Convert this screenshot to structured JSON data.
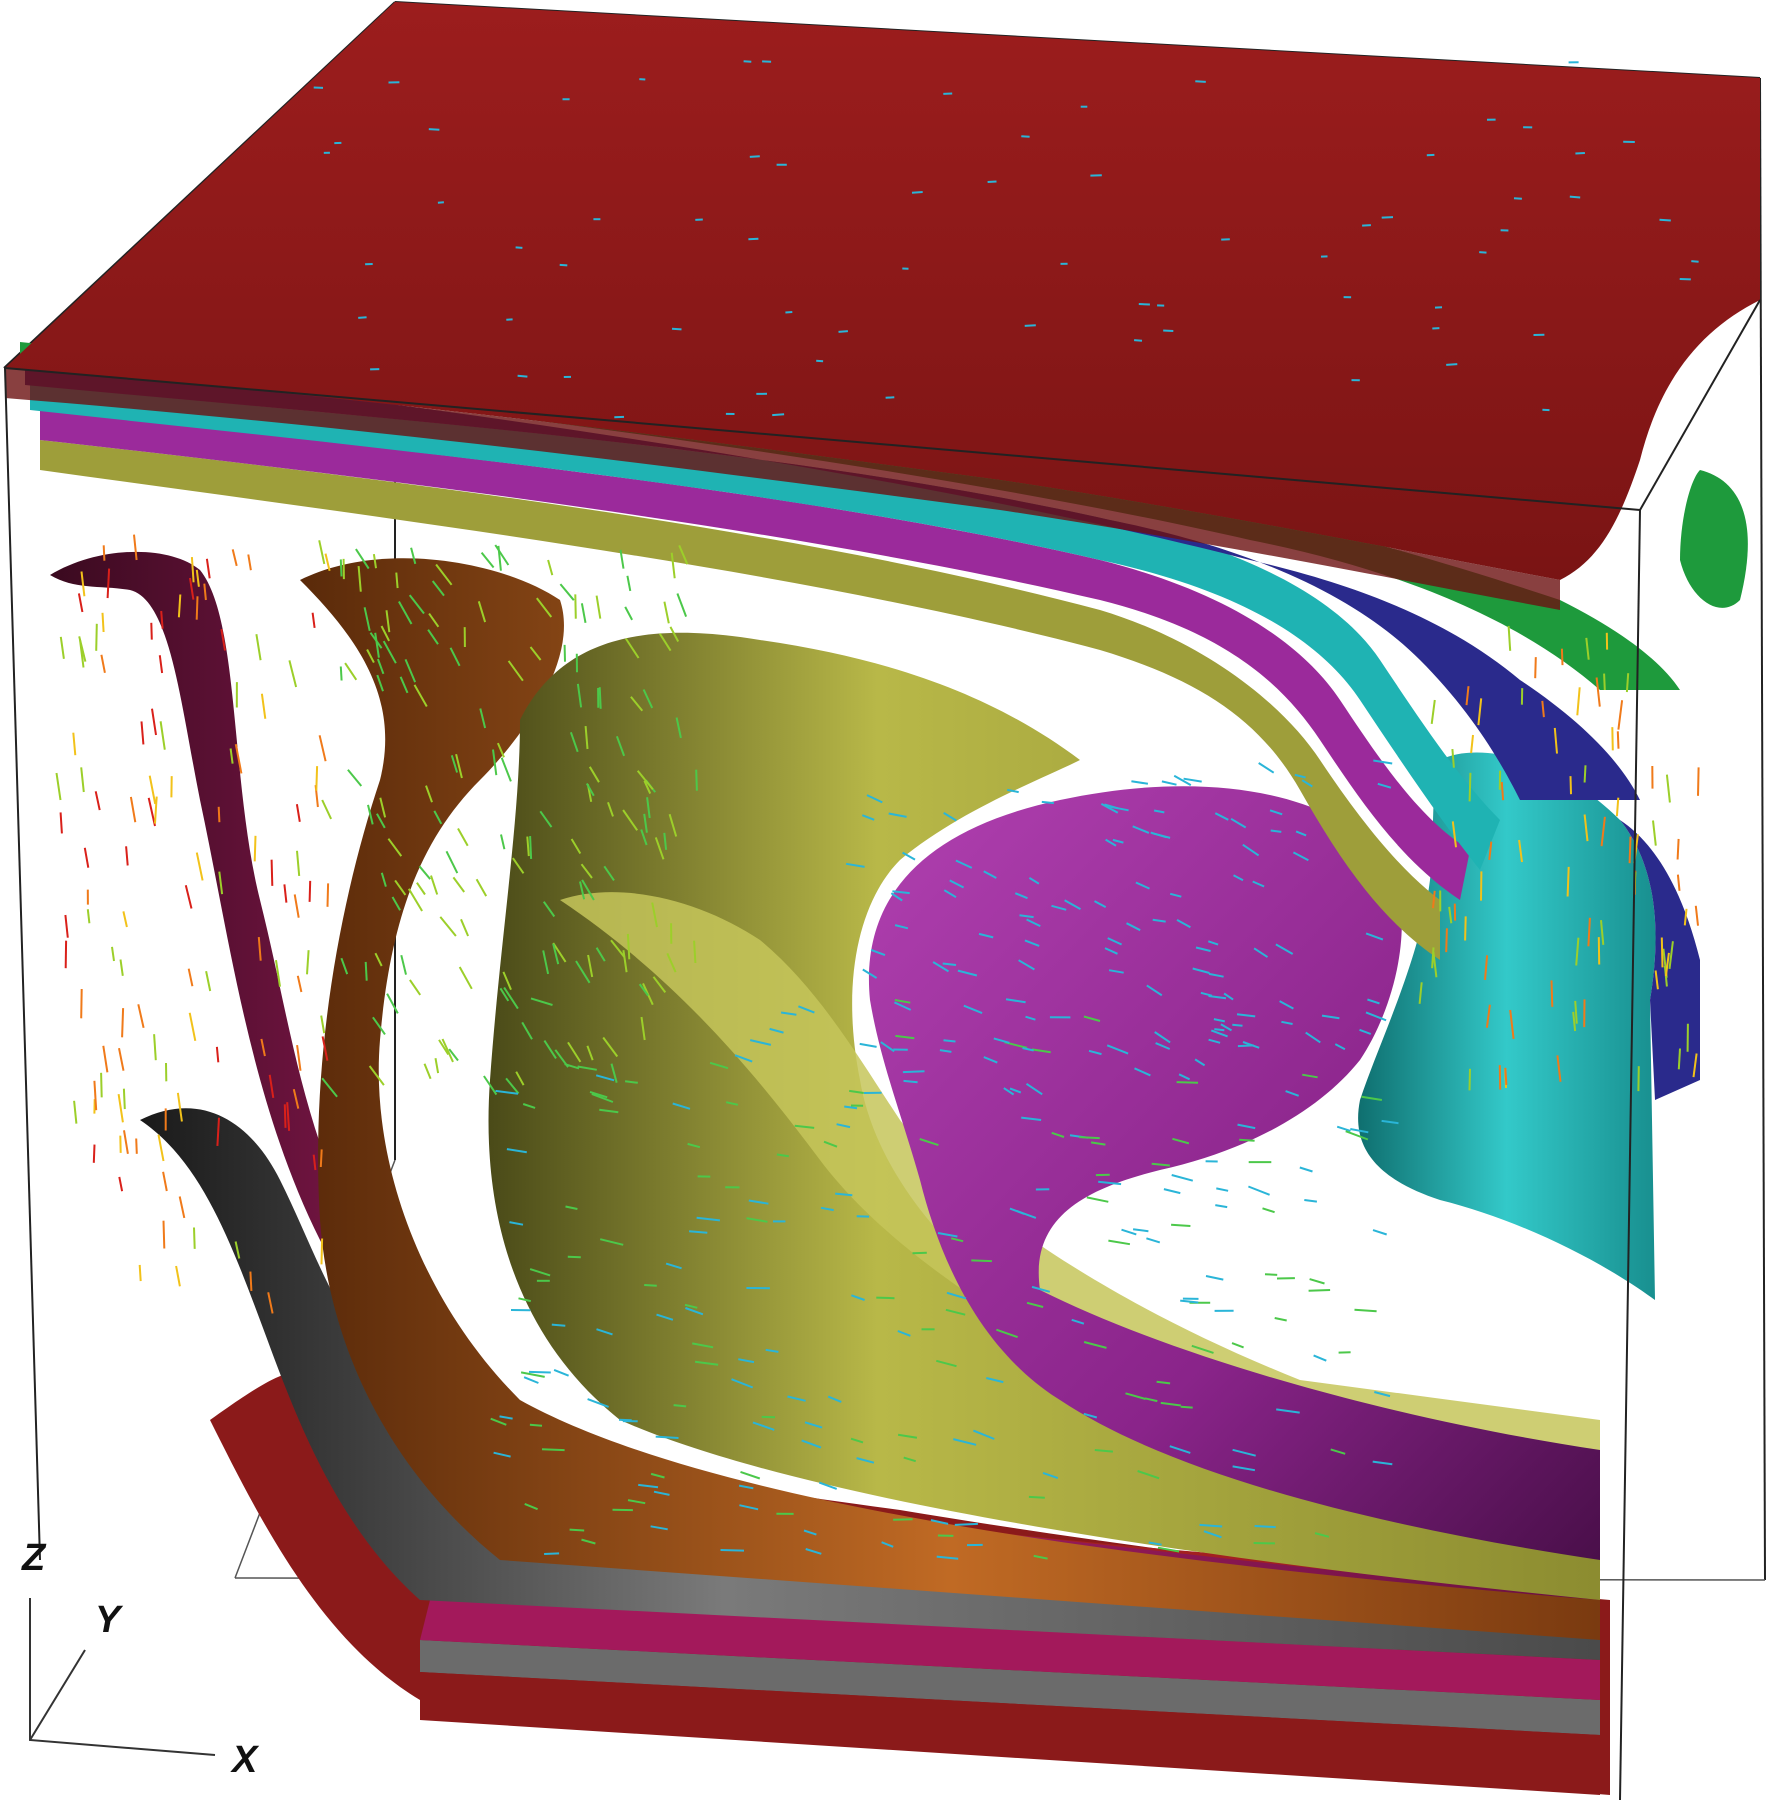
{
  "figure": {
    "description_free": true,
    "background": "#ffffff",
    "isosurface_colors": {
      "red": "#8b1a1a",
      "green": "#1e9a3c",
      "blue": "#2a2a8c",
      "cyan": "#1fb3b3",
      "magenta": "#9b2a9b",
      "olive": "#9e9e3a",
      "orange": "#a65a1e",
      "crimson": "#a3195b",
      "gray": "#6b6b6b"
    },
    "vector_colors": [
      "#d9201a",
      "#f07a1a",
      "#f2c21a",
      "#9ccf2a",
      "#4cc84a",
      "#2ab5d8"
    ]
  },
  "axes": {
    "x_label": "X",
    "y_label": "Y",
    "z_label": "Z"
  }
}
